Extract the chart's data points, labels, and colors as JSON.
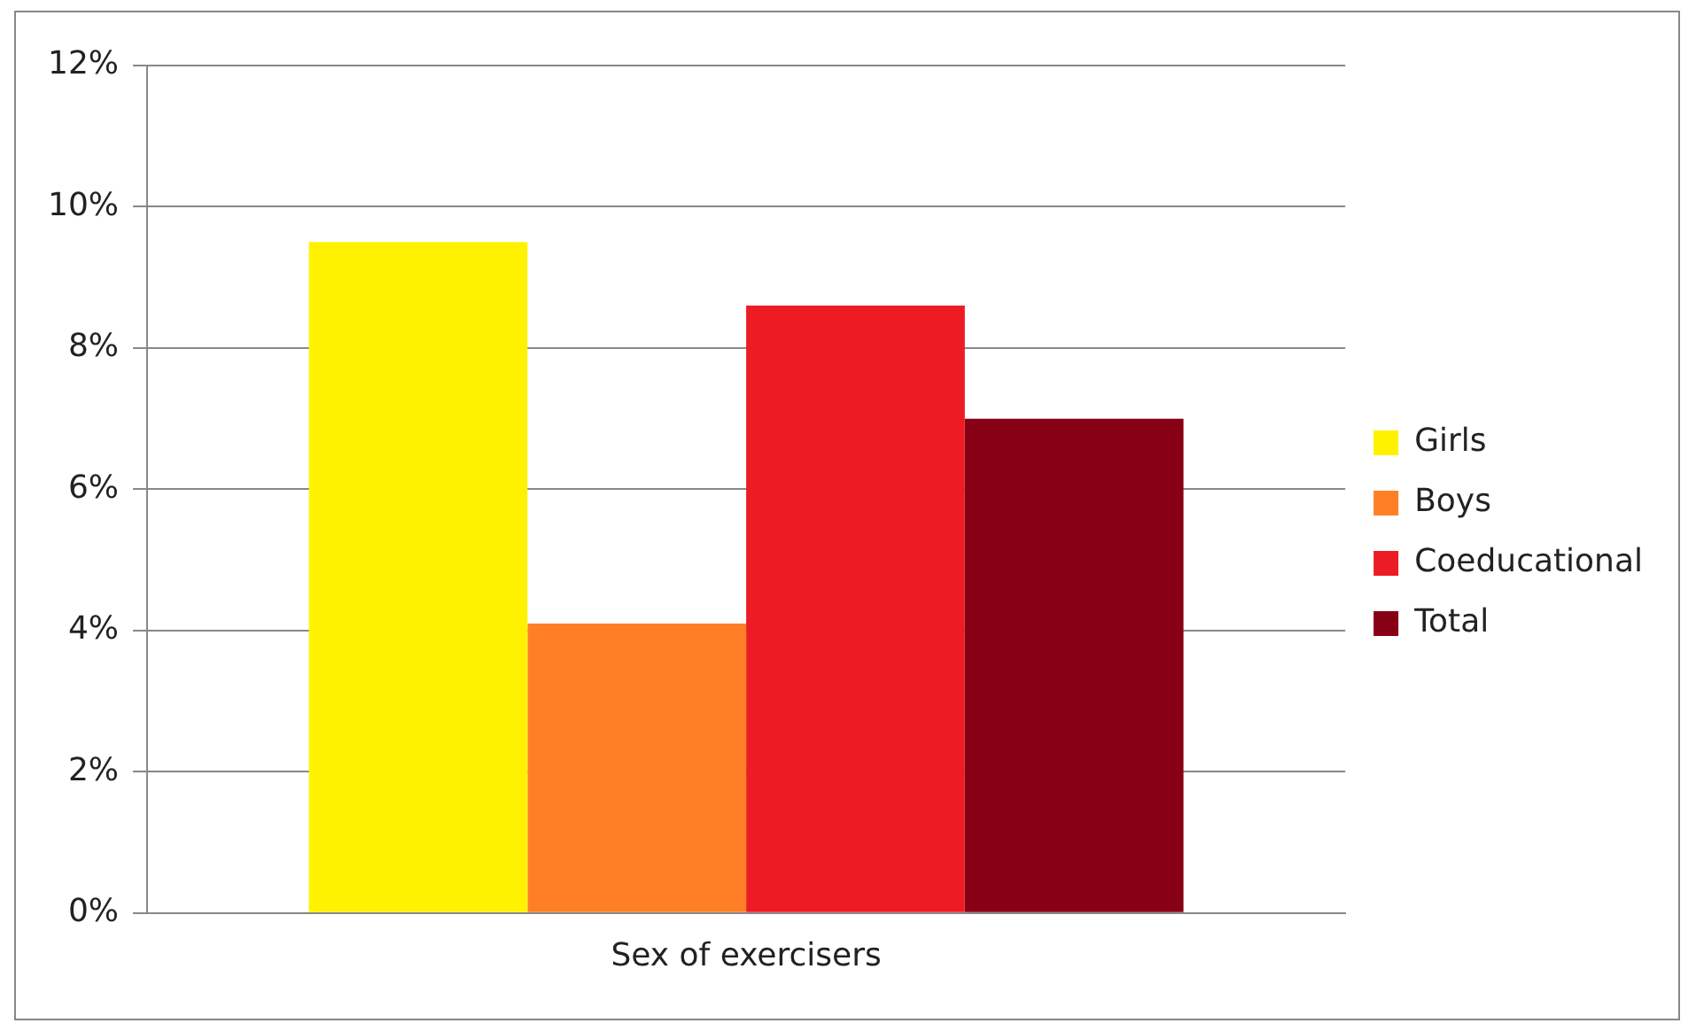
{
  "chart_data": {
    "type": "bar",
    "categories": [
      "Sex of exercisers"
    ],
    "series": [
      {
        "name": "Girls",
        "color": "#fff200",
        "values": [
          9.5
        ]
      },
      {
        "name": "Boys",
        "color": "#ff7f27",
        "values": [
          4.1
        ]
      },
      {
        "name": "Coeducational",
        "color": "#ed1c24",
        "values": [
          8.6
        ]
      },
      {
        "name": "Total",
        "color": "#880015",
        "values": [
          7.0
        ]
      }
    ],
    "ylim": [
      0,
      12
    ],
    "yticks": [
      {
        "value": 0,
        "label": "0%"
      },
      {
        "value": 2,
        "label": "2%"
      },
      {
        "value": 4,
        "label": "4%"
      },
      {
        "value": 6,
        "label": "6%"
      },
      {
        "value": 8,
        "label": "8%"
      },
      {
        "value": 10,
        "label": "10%"
      },
      {
        "value": 12,
        "label": "12%"
      }
    ],
    "grid": "y",
    "legend": "right"
  }
}
